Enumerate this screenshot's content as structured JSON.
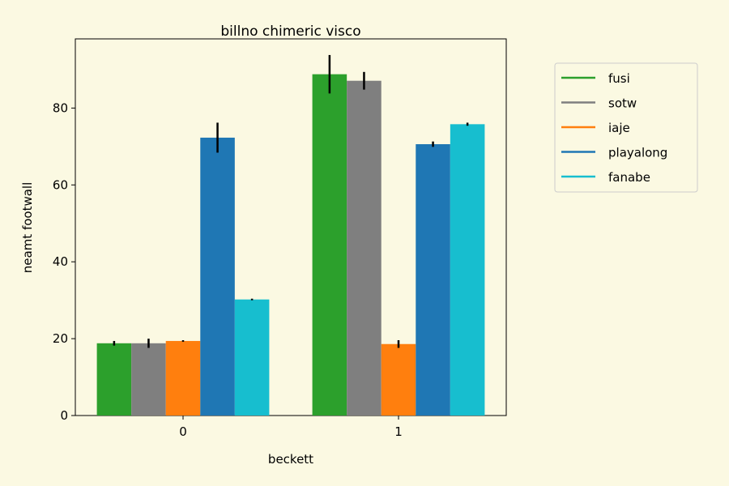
{
  "chart_data": {
    "type": "bar",
    "title": "billno chimeric visco",
    "xlabel": "beckett",
    "ylabel": "neamt footwall",
    "categories": [
      "0",
      "1"
    ],
    "ylim": [
      0,
      98
    ],
    "yticks": [
      0,
      20,
      40,
      60,
      80
    ],
    "ytick_labels": [
      "0",
      "20",
      "40",
      "60",
      "80"
    ],
    "legend_position": "outside-right",
    "series": [
      {
        "name": "fusi",
        "color": "#2ca02c",
        "values": [
          18.8,
          88.8
        ],
        "errors": [
          0.6,
          5.0
        ]
      },
      {
        "name": "sotw",
        "color": "#7f7f7f",
        "values": [
          18.8,
          87.1
        ],
        "errors": [
          1.2,
          2.3
        ]
      },
      {
        "name": "iaje",
        "color": "#ff7f0e",
        "values": [
          19.4,
          18.6
        ],
        "errors": [
          0.2,
          1.0
        ]
      },
      {
        "name": "playalong",
        "color": "#1f77b4",
        "values": [
          72.3,
          70.6
        ],
        "errors": [
          3.9,
          0.7
        ]
      },
      {
        "name": "fanabe",
        "color": "#17becf",
        "values": [
          30.2,
          75.8
        ],
        "errors": [
          0.2,
          0.4
        ]
      }
    ]
  }
}
